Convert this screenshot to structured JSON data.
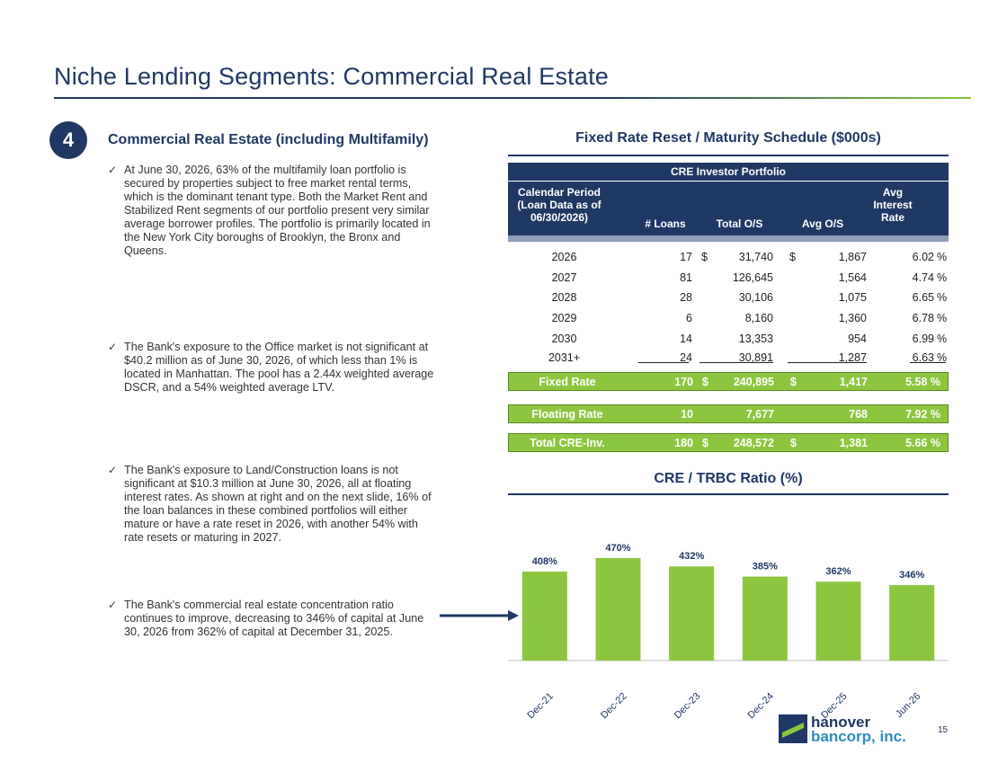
{
  "title": "Niche Lending Segments: Commercial Real Estate",
  "section": {
    "number": "4",
    "heading": "Commercial Real Estate (including Multifamily)"
  },
  "bullets": [
    "At June 30, 2026, 63% of the multifamily loan portfolio is secured by properties subject to free market rental terms, which is the dominant tenant type. Both the Market Rent and Stabilized Rent segments of our portfolio present very similar average borrower profiles. The portfolio is primarily located in the New York City boroughs of Brooklyn, the Bronx and Queens.",
    "The Bank's exposure to the Office market is not significant at $40.2 million as of June 30, 2026, of which less than 1% is located in Manhattan. The pool has a 2.44x weighted average DSCR, and a 54% weighted average LTV.",
    "The Bank's exposure to Land/Construction loans is not significant at $10.3 million at June 30, 2026, all at floating interest rates. As shown at right and on the next slide, 16% of the loan balances in these combined portfolios will either mature or have a rate reset in 2026, with another 54% with rate resets or maturing in 2027.",
    "The Bank's commercial real estate concentration ratio continues to improve, decreasing to 346% of capital at June 30, 2026 from 362% of capital at December 31, 2025."
  ],
  "table": {
    "heading": "Fixed Rate Reset / Maturity Schedule ($000s)",
    "band_title": "CRE Investor Portfolio",
    "columns": {
      "period": "Calendar Period (Loan Data as of 06/30/2026)",
      "loans": "# Loans",
      "total": "Total O/S",
      "avg": "Avg O/S",
      "rate": "Avg Interest Rate"
    },
    "rows": [
      {
        "period": "2026",
        "loans": "17",
        "cur1": "$",
        "total": "31,740",
        "cur2": "$",
        "avg": "1,867",
        "rate": "6.02",
        "pct": "%"
      },
      {
        "period": "2027",
        "loans": "81",
        "cur1": "",
        "total": "126,645",
        "cur2": "",
        "avg": "1,564",
        "rate": "4.74",
        "pct": "%"
      },
      {
        "period": "2028",
        "loans": "28",
        "cur1": "",
        "total": "30,106",
        "cur2": "",
        "avg": "1,075",
        "rate": "6.65",
        "pct": "%"
      },
      {
        "period": "2029",
        "loans": "6",
        "cur1": "",
        "total": "8,160",
        "cur2": "",
        "avg": "1,360",
        "rate": "6.78",
        "pct": "%"
      },
      {
        "period": "2030",
        "loans": "14",
        "cur1": "",
        "total": "13,353",
        "cur2": "",
        "avg": "954",
        "rate": "6.99",
        "pct": "%"
      },
      {
        "period": "2031+",
        "loans": "24",
        "cur1": "",
        "total": "30,891",
        "cur2": "",
        "avg": "1,287",
        "rate": "6.63",
        "pct": "%"
      }
    ],
    "summary": [
      {
        "label": "Fixed Rate",
        "loans": "170",
        "cur1": "$",
        "total": "240,895",
        "cur2": "$",
        "avg": "1,417",
        "rate": "5.58 %"
      },
      {
        "label": "Floating Rate",
        "loans": "10",
        "cur1": "",
        "total": "7,677",
        "cur2": "",
        "avg": "768",
        "rate": "7.92 %"
      },
      {
        "label": "Total CRE-Inv.",
        "loans": "180",
        "cur1": "$",
        "total": "248,572",
        "cur2": "$",
        "avg": "1,381",
        "rate": "5.66 %"
      }
    ]
  },
  "chart_heading": "CRE / TRBC Ratio (%)",
  "chart_data": {
    "type": "bar",
    "title": "CRE / TRBC Ratio (%)",
    "categories": [
      "Dec-21",
      "Dec-22",
      "Dec-23",
      "Dec-24",
      "Dec-25",
      "Jun-26"
    ],
    "values": [
      408,
      470,
      432,
      385,
      362,
      346
    ],
    "data_labels": [
      "408%",
      "470%",
      "432%",
      "385%",
      "362%",
      "346%"
    ],
    "color": "#8cc63f",
    "ylim": [
      0,
      470
    ],
    "grid": false,
    "legend": "none"
  },
  "colors": {
    "navy": "#1f3864",
    "green": "#8cc63f",
    "blue": "#2e8bc0"
  },
  "logo": {
    "line1": "hanover",
    "line2": "bancorp, inc."
  },
  "page_number": "15"
}
